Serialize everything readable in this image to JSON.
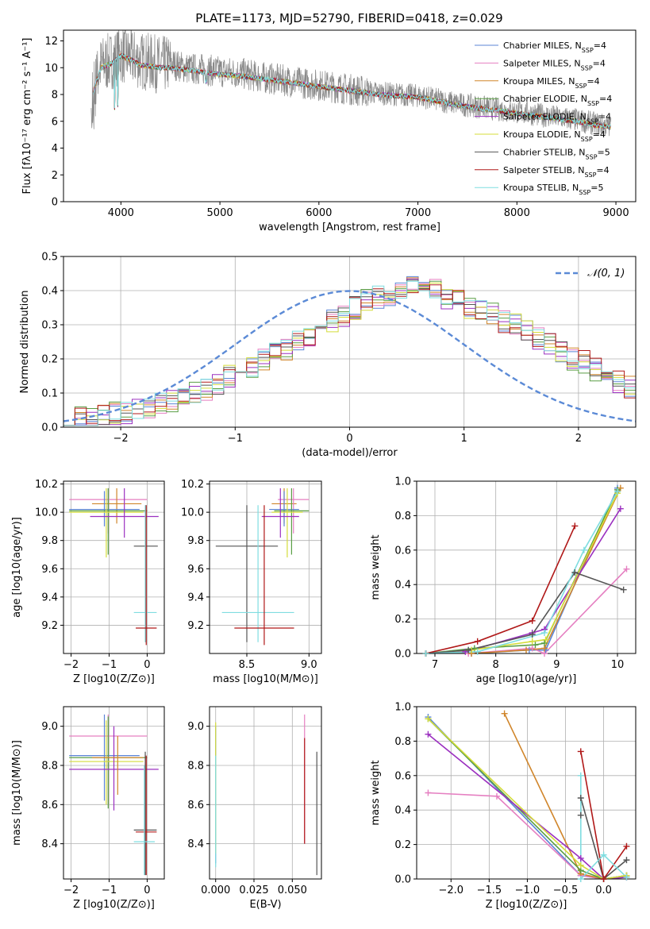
{
  "title": "PLATE=1173, MJD=52790, FIBERID=0418, z=0.029",
  "colors": {
    "Chabrier MILES": "#5b84d6",
    "Salpeter MILES": "#e57fc1",
    "Kroupa MILES": "#d0852a",
    "Chabrier ELODIE": "#5a9e45",
    "Salpeter ELODIE": "#9b30c0",
    "Kroupa ELODIE": "#d4dc3a",
    "Chabrier STELIB": "#555555",
    "Salpeter STELIB": "#b01818",
    "Kroupa STELIB": "#7fdde0",
    "data": "#888888",
    "normal": "#5b8ad6"
  },
  "chart_data": [
    {
      "id": "spectrum",
      "type": "line",
      "xlabel": "wavelength [Angstrom, rest frame]",
      "ylabel": "Flux [fλ10⁻¹⁷ erg cm⁻² s⁻¹ A⁻¹]",
      "xlim": [
        3420,
        9200
      ],
      "ylim": [
        0,
        12.8
      ],
      "xticks": [
        4000,
        5000,
        6000,
        7000,
        8000,
        9000
      ],
      "yticks": [
        0,
        2,
        4,
        6,
        8,
        10,
        12
      ],
      "legend_position": "top-right",
      "legend": [
        {
          "name": "Chabrier MILES",
          "nssp": "4"
        },
        {
          "name": "Salpeter MILES",
          "nssp": "4"
        },
        {
          "name": "Kroupa MILES",
          "nssp": "4"
        },
        {
          "name": "Chabrier ELODIE",
          "nssp": "4"
        },
        {
          "name": "Salpeter ELODIE",
          "nssp": "4"
        },
        {
          "name": "Kroupa ELODIE",
          "nssp": "4"
        },
        {
          "name": "Chabrier STELIB",
          "nssp": "5"
        },
        {
          "name": "Salpeter STELIB",
          "nssp": "4"
        },
        {
          "name": "Kroupa STELIB",
          "nssp": "5"
        }
      ],
      "data_wave": [
        3700,
        3800,
        3900,
        4000,
        4100,
        4200,
        4300,
        4400,
        4500,
        4600,
        4700,
        4800,
        4900,
        5000,
        5200,
        5400,
        5600,
        5800,
        6000,
        6200,
        6400,
        6600,
        6800,
        7000,
        7200,
        7400,
        7600,
        7800,
        8000,
        8200,
        8400,
        8600,
        8800,
        8950
      ],
      "data_flux": [
        8.0,
        10.2,
        10.5,
        11.0,
        10.8,
        10.5,
        10.4,
        10.2,
        10.3,
        10.1,
        9.9,
        9.9,
        9.8,
        9.7,
        9.6,
        9.3,
        9.1,
        8.9,
        8.7,
        8.5,
        8.3,
        8.1,
        8.0,
        7.9,
        7.6,
        7.3,
        7.1,
        6.9,
        6.7,
        6.5,
        6.3,
        6.1,
        5.8,
        5.6
      ],
      "model_wave": [
        3720,
        3800,
        3900,
        4000,
        4100,
        4200,
        4300,
        4400,
        4500,
        4600,
        4800,
        5000,
        5200,
        5400,
        5600,
        5800,
        6000,
        6200,
        6400,
        6600,
        6800,
        7000,
        7200,
        7400,
        7600,
        7800,
        8000,
        8200,
        8400,
        8600,
        8800,
        8950
      ],
      "model_flux": [
        8.2,
        10.0,
        10.3,
        10.9,
        10.6,
        10.2,
        10.1,
        10.0,
        10.0,
        9.9,
        9.7,
        9.5,
        9.4,
        9.2,
        9.0,
        8.8,
        8.6,
        8.4,
        8.2,
        8.0,
        7.9,
        7.8,
        7.5,
        7.2,
        7.0,
        6.8,
        6.6,
        6.4,
        6.2,
        6.0,
        5.7,
        5.6
      ]
    },
    {
      "id": "residuals",
      "type": "area",
      "xlabel": "(data-model)/error",
      "ylabel": "Normed distribution",
      "xlim": [
        -2.5,
        2.5
      ],
      "ylim": [
        0,
        0.5
      ],
      "xticks": [
        -2,
        -1,
        0,
        1,
        2
      ],
      "yticks": [
        0.0,
        0.1,
        0.2,
        0.3,
        0.4,
        0.5
      ],
      "legend": [
        {
          "name": "𝒩(0, 1)"
        }
      ],
      "bin_width": 0.1,
      "bin_start": -2.5,
      "histogram_envelope": [
        0.02,
        0.025,
        0.03,
        0.035,
        0.04,
        0.045,
        0.05,
        0.055,
        0.065,
        0.075,
        0.085,
        0.1,
        0.11,
        0.13,
        0.15,
        0.16,
        0.18,
        0.2,
        0.22,
        0.23,
        0.25,
        0.27,
        0.29,
        0.31,
        0.33,
        0.35,
        0.37,
        0.38,
        0.39,
        0.4,
        0.41,
        0.39,
        0.4,
        0.38,
        0.37,
        0.35,
        0.34,
        0.33,
        0.31,
        0.3,
        0.28,
        0.26,
        0.24,
        0.22,
        0.2,
        0.19,
        0.17,
        0.15,
        0.13,
        0.12,
        0.1
      ]
    },
    {
      "id": "age-vs-Z",
      "type": "scatter",
      "xlabel": "Z [log10(Z/Z⊙)]",
      "ylabel": "age [log10(age/yr)]",
      "xlim": [
        -2.2,
        0.45
      ],
      "ylim": [
        9.0,
        10.22
      ],
      "xticks": [
        -2,
        -1,
        0
      ],
      "yticks": [
        9.2,
        9.4,
        9.6,
        9.8,
        10.0,
        10.2
      ]
    },
    {
      "id": "age-vs-mass",
      "type": "scatter",
      "xlabel": "mass [log10(M/M⊙)]",
      "ylabel": "",
      "xlim": [
        8.2,
        9.1
      ],
      "ylim": [
        9.0,
        10.22
      ],
      "xticks": [
        8.5,
        9.0
      ],
      "yticks": [
        9.2,
        9.4,
        9.6,
        9.8,
        10.0,
        10.2
      ]
    },
    {
      "id": "massweight-vs-age",
      "type": "line",
      "xlabel": "age [log10(age/yr)]",
      "ylabel": "mass weight",
      "xlim": [
        6.7,
        10.3
      ],
      "ylim": [
        0,
        1.0
      ],
      "xticks": [
        7,
        8,
        9,
        10
      ],
      "yticks": [
        0.0,
        0.2,
        0.4,
        0.6,
        0.8,
        1.0
      ],
      "series": [
        {
          "name": "Chabrier MILES",
          "x": [
            6.85,
            7.6,
            8.55,
            8.82,
            10.0
          ],
          "y": [
            0.0,
            0.0,
            0.02,
            0.02,
            0.96
          ]
        },
        {
          "name": "Salpeter MILES",
          "x": [
            6.85,
            7.55,
            8.6,
            8.8,
            10.15
          ],
          "y": [
            0.0,
            0.0,
            0.03,
            0.0,
            0.49
          ]
        },
        {
          "name": "Kroupa MILES",
          "x": [
            6.85,
            7.6,
            8.5,
            8.8,
            10.05
          ],
          "y": [
            0.0,
            0.0,
            0.02,
            0.03,
            0.96
          ]
        },
        {
          "name": "Chabrier ELODIE",
          "x": [
            6.85,
            7.65,
            8.65,
            8.8,
            10.0
          ],
          "y": [
            0.0,
            0.03,
            0.05,
            0.06,
            0.95
          ]
        },
        {
          "name": "Salpeter ELODIE",
          "x": [
            6.85,
            7.5,
            8.6,
            8.8,
            10.05
          ],
          "y": [
            0.0,
            0.01,
            0.12,
            0.14,
            0.84
          ]
        },
        {
          "name": "Kroupa ELODIE",
          "x": [
            6.85,
            7.6,
            8.6,
            8.82,
            10.0
          ],
          "y": [
            0.0,
            0.02,
            0.07,
            0.08,
            0.93
          ]
        },
        {
          "name": "Chabrier STELIB",
          "x": [
            6.85,
            7.55,
            8.6,
            9.3,
            10.1
          ],
          "y": [
            0.0,
            0.02,
            0.11,
            0.47,
            0.37
          ]
        },
        {
          "name": "Salpeter STELIB",
          "x": [
            6.85,
            7.7,
            8.6,
            9.3
          ],
          "y": [
            0.0,
            0.07,
            0.19,
            0.74
          ]
        },
        {
          "name": "Kroupa STELIB",
          "x": [
            6.85,
            7.7,
            8.8,
            9.45,
            10.0
          ],
          "y": [
            0.0,
            0.01,
            0.12,
            0.6,
            0.94
          ]
        }
      ]
    },
    {
      "id": "mass-vs-Z",
      "type": "scatter",
      "xlabel": "Z [log10(Z/Z⊙)]",
      "ylabel": "mass [log10(M/M⊙)]",
      "xlim": [
        -2.2,
        0.45
      ],
      "ylim": [
        8.22,
        9.1
      ],
      "xticks": [
        -2,
        -1,
        0
      ],
      "yticks": [
        8.4,
        8.6,
        8.8,
        9.0
      ]
    },
    {
      "id": "mass-vs-EBV",
      "type": "scatter",
      "xlabel": "E(B-V)",
      "ylabel": "",
      "xlim": [
        -0.004,
        0.069
      ],
      "ylim": [
        8.22,
        9.1
      ],
      "xticks": [
        0.0,
        0.025,
        0.05
      ],
      "yticks": [
        8.4,
        8.6,
        8.8,
        9.0
      ]
    },
    {
      "id": "massweight-vs-Z",
      "type": "line",
      "xlabel": "Z [log10(Z/Z⊙)]",
      "ylabel": "mass weight",
      "xlim": [
        -2.45,
        0.42
      ],
      "ylim": [
        0,
        1.0
      ],
      "xticks": [
        -2.0,
        -1.5,
        -1.0,
        -0.5,
        0.0
      ],
      "yticks": [
        0.0,
        0.2,
        0.4,
        0.6,
        0.8,
        1.0
      ],
      "series": [
        {
          "name": "Chabrier MILES",
          "x": [
            -2.3,
            -0.3,
            0.0,
            0.3
          ],
          "y": [
            0.94,
            0.02,
            0.0,
            0.02
          ]
        },
        {
          "name": "Salpeter MILES",
          "x": [
            -2.3,
            -1.4,
            -0.3,
            0.0,
            0.3
          ],
          "y": [
            0.5,
            0.48,
            0.02,
            0.0,
            0.02
          ]
        },
        {
          "name": "Kroupa MILES",
          "x": [
            -1.3,
            -0.3,
            0.0,
            0.3
          ],
          "y": [
            0.96,
            0.03,
            0.0,
            0.01
          ]
        },
        {
          "name": "Chabrier ELODIE",
          "x": [
            -2.3,
            -0.3,
            0.0,
            0.3
          ],
          "y": [
            0.93,
            0.05,
            0.0,
            0.02
          ]
        },
        {
          "name": "Salpeter ELODIE",
          "x": [
            -2.3,
            -0.3,
            0.0,
            0.3
          ],
          "y": [
            0.84,
            0.12,
            0.0,
            0.01
          ]
        },
        {
          "name": "Kroupa ELODIE",
          "x": [
            -2.3,
            -0.3,
            0.0,
            0.3
          ],
          "y": [
            0.93,
            0.08,
            0.0,
            0.02
          ]
        },
        {
          "name": "Chabrier STELIB",
          "x": [
            -0.3,
            -0.3,
            0.0,
            0.3
          ],
          "y": [
            0.37,
            0.47,
            0.0,
            0.11
          ]
        },
        {
          "name": "Salpeter STELIB",
          "x": [
            -0.3,
            0.0,
            0.3
          ],
          "y": [
            0.74,
            0.0,
            0.19
          ]
        },
        {
          "name": "Kroupa STELIB",
          "x": [
            -0.3,
            -0.3,
            0.0,
            0.3
          ],
          "y": [
            0.6,
            0.0,
            0.14,
            0.01
          ]
        }
      ]
    }
  ]
}
